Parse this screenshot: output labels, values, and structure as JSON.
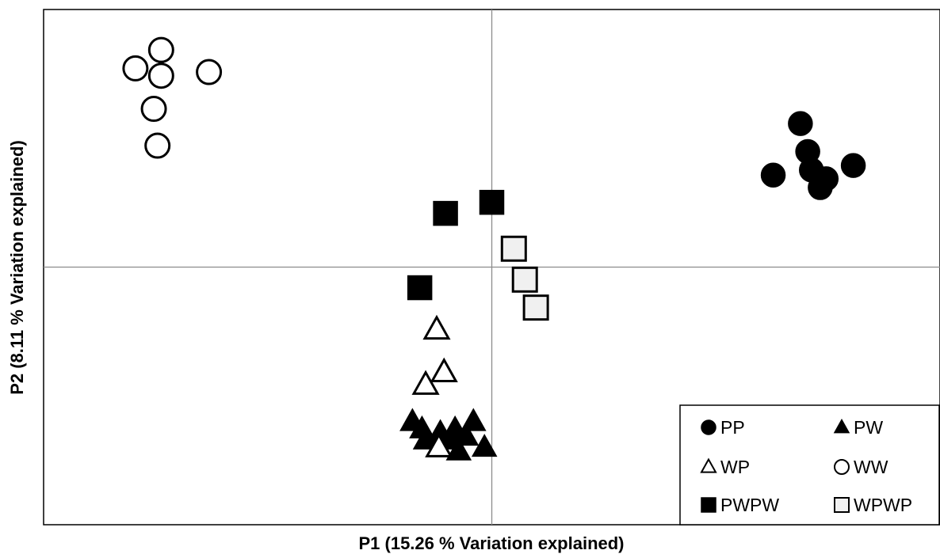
{
  "chart_data": {
    "type": "scatter",
    "title": "",
    "xlabel": "P1 (15.26 % Variation explained)",
    "ylabel": "P2 (8.11 % Variation explained)",
    "xlim": [
      -6.1,
      6.1
    ],
    "ylim": [
      -3.5,
      3.5
    ],
    "grid": false,
    "zero_lines": true,
    "tick_labels": false,
    "legend_position": "bottom-right",
    "legend_columns": 2,
    "series": [
      {
        "name": "PP",
        "marker": "circle",
        "filled": true,
        "fill": "#000000",
        "points": [
          {
            "x": 4.2,
            "y": 1.95
          },
          {
            "x": 4.3,
            "y": 1.57
          },
          {
            "x": 4.35,
            "y": 1.32
          },
          {
            "x": 4.55,
            "y": 1.2
          },
          {
            "x": 4.47,
            "y": 1.08
          },
          {
            "x": 4.92,
            "y": 1.38
          },
          {
            "x": 3.83,
            "y": 1.25
          }
        ]
      },
      {
        "name": "PW",
        "marker": "triangle",
        "filled": true,
        "fill": "#000000",
        "points": [
          {
            "x": -1.08,
            "y": -2.1
          },
          {
            "x": -0.95,
            "y": -2.2
          },
          {
            "x": -0.9,
            "y": -2.35
          },
          {
            "x": -0.7,
            "y": -2.25
          },
          {
            "x": -0.55,
            "y": -2.35
          },
          {
            "x": -0.5,
            "y": -2.2
          },
          {
            "x": -0.35,
            "y": -2.3
          },
          {
            "x": -0.25,
            "y": -2.1
          },
          {
            "x": -0.1,
            "y": -2.45
          },
          {
            "x": -0.45,
            "y": -2.5
          }
        ]
      },
      {
        "name": "WP",
        "marker": "triangle",
        "filled": false,
        "fill": "#ffffff",
        "points": [
          {
            "x": -0.75,
            "y": -0.85
          },
          {
            "x": -0.65,
            "y": -1.43
          },
          {
            "x": -0.9,
            "y": -1.6
          },
          {
            "x": -0.72,
            "y": -2.45
          }
        ]
      },
      {
        "name": "WW",
        "marker": "circle",
        "filled": false,
        "fill": "#ffffff",
        "points": [
          {
            "x": -4.5,
            "y": 2.95
          },
          {
            "x": -4.85,
            "y": 2.7
          },
          {
            "x": -4.5,
            "y": 2.6
          },
          {
            "x": -3.85,
            "y": 2.65
          },
          {
            "x": -4.6,
            "y": 2.15
          },
          {
            "x": -4.55,
            "y": 1.65
          }
        ]
      },
      {
        "name": "PWPW",
        "marker": "square",
        "filled": true,
        "fill": "#000000",
        "points": [
          {
            "x": -0.63,
            "y": 0.73
          },
          {
            "x": 0.0,
            "y": 0.88
          },
          {
            "x": -0.98,
            "y": -0.28
          }
        ]
      },
      {
        "name": "WPWP",
        "marker": "square",
        "filled": false,
        "fill": "#f0f0f0",
        "points": [
          {
            "x": 0.3,
            "y": 0.25
          },
          {
            "x": 0.45,
            "y": -0.17
          },
          {
            "x": 0.6,
            "y": -0.55
          }
        ]
      }
    ]
  }
}
